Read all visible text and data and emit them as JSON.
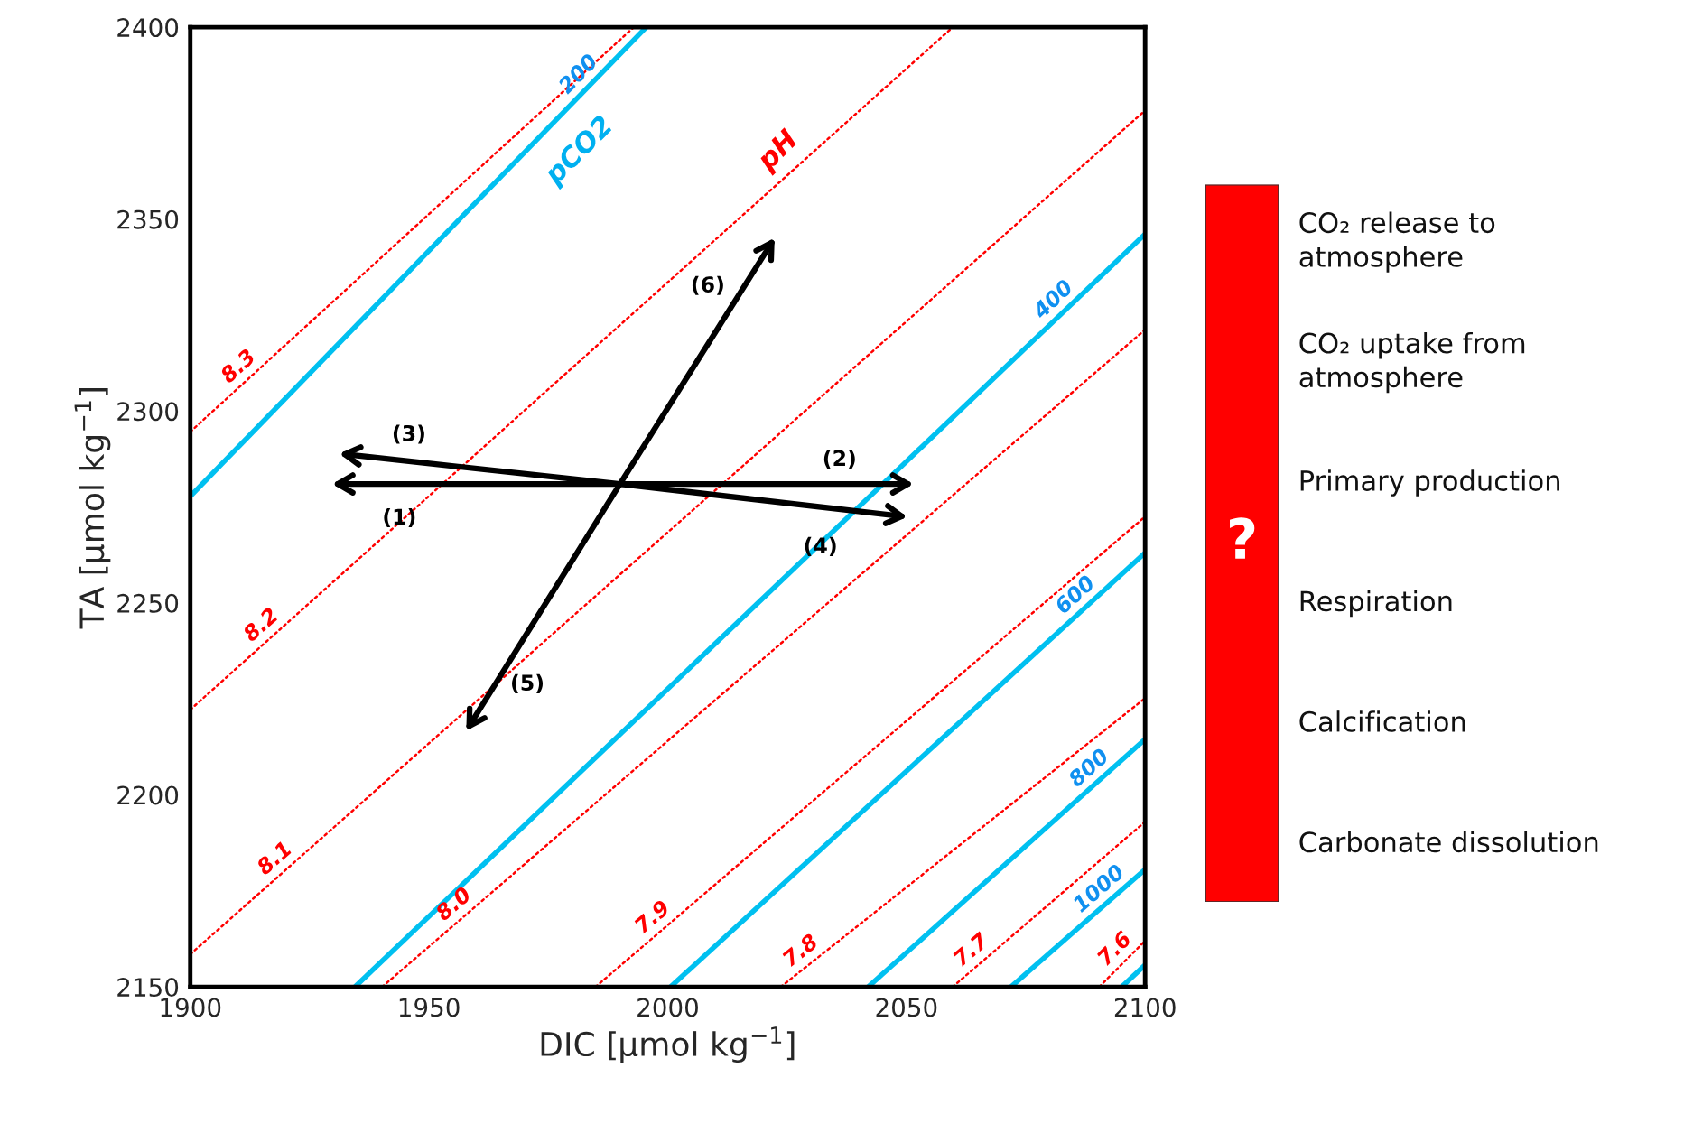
{
  "chart_data": [
    {
      "type": "line",
      "xlabel": "DIC [µmol kg$^{−1}$]",
      "ylabel": "TA [µmol kg$^{−1}$]",
      "xlim": [
        1900,
        2100
      ],
      "xticks": [
        1900,
        1950,
        2000,
        2050,
        2100
      ],
      "ylim": [
        2150,
        2400
      ],
      "yticks": [
        2150,
        2200,
        2250,
        2300,
        2350,
        2400
      ],
      "grid": false,
      "series": [
        {
          "name": "200",
          "color": "#00c0f0",
          "line_style": "solid",
          "x": [
            1900,
            1995.5
          ],
          "values": [
            2277.8,
            2400
          ]
        },
        {
          "name": "400",
          "color": "#00c0f0",
          "line_style": "solid",
          "x": [
            1934.5,
            2100
          ],
          "values": [
            2150,
            2346.1
          ]
        },
        {
          "name": "600",
          "color": "#00c0f0",
          "line_style": "solid",
          "x": [
            2000.6,
            2100
          ],
          "values": [
            2150,
            2263.1
          ]
        },
        {
          "name": "800",
          "color": "#00c0f0",
          "line_style": "solid",
          "x": [
            2042.0,
            2100
          ],
          "values": [
            2150,
            2214.5
          ]
        },
        {
          "name": "1000",
          "color": "#00c0f0",
          "line_style": "solid",
          "x": [
            2071.9,
            2100
          ],
          "values": [
            2150,
            2180.6
          ]
        },
        {
          "color": "#00c0f0",
          "line_style": "solid",
          "x": [
            2095.1,
            2100
          ],
          "values": [
            2150,
            2155.7
          ]
        },
        {
          "name": "8.3",
          "color": "#ff0000",
          "line_style": "dotted",
          "x": [
            1900,
            1992.9
          ],
          "values": [
            2294.6,
            2400
          ]
        },
        {
          "name": "8.2",
          "color": "#ff0000",
          "line_style": "dotted",
          "x": [
            1900,
            2059.7
          ],
          "values": [
            2222.2,
            2400
          ]
        },
        {
          "name": "8.1",
          "color": "#ff0000",
          "line_style": "dotted",
          "x": [
            1900,
            2100
          ],
          "values": [
            2158.5,
            2378.3
          ]
        },
        {
          "name": "8.0",
          "color": "#ff0000",
          "line_style": "dotted",
          "x": [
            1940.2,
            2100
          ],
          "values": [
            2150,
            2321.2
          ]
        },
        {
          "name": "7.9",
          "color": "#ff0000",
          "line_style": "dotted",
          "x": [
            1984.9,
            2100
          ],
          "values": [
            2150,
            2272.5
          ]
        },
        {
          "name": "7.8",
          "color": "#ff0000",
          "line_style": "dotted",
          "x": [
            2023.7,
            2100
          ],
          "values": [
            2150,
            2225.2
          ]
        },
        {
          "name": "7.7",
          "color": "#ff0000",
          "line_style": "dotted",
          "x": [
            2059.7,
            2100
          ],
          "values": [
            2150,
            2193.0
          ]
        },
        {
          "name": "7.6",
          "color": "#ff0000",
          "line_style": "dotted",
          "x": [
            2090.4,
            2100
          ],
          "values": [
            2150,
            2162
          ]
        }
      ],
      "annotations": [
        "pCO2",
        "pH",
        "(1)",
        "(2)",
        "(3)",
        "(4)",
        "(5)",
        "(6)"
      ]
    },
    {
      "type": "other",
      "annotations": [
        "?",
        "CO₂ release to\natmosphere",
        "CO₂ uptake from\natmosphere",
        "Primary production",
        "Respiration",
        "Calcification",
        "Carbonate dissolution"
      ]
    }
  ]
}
